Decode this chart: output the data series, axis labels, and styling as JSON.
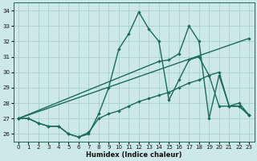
{
  "xlabel": "Humidex (Indice chaleur)",
  "bg_color": "#cde8e8",
  "grid_color": "#a8d0d0",
  "line_color": "#1a6b5a",
  "xlim": [
    -0.5,
    23.5
  ],
  "ylim": [
    25.5,
    34.5
  ],
  "yticks": [
    26,
    27,
    28,
    29,
    30,
    31,
    32,
    33,
    34
  ],
  "xticks": [
    0,
    1,
    2,
    3,
    4,
    5,
    6,
    7,
    8,
    9,
    10,
    11,
    12,
    13,
    14,
    15,
    16,
    17,
    18,
    19,
    20,
    21,
    22,
    23
  ],
  "series1_x": [
    0,
    1,
    2,
    3,
    4,
    5,
    6,
    7,
    8,
    9,
    10,
    11,
    12,
    13,
    14,
    15,
    16,
    17,
    18,
    19,
    20,
    21,
    22,
    23
  ],
  "series1_y": [
    27.0,
    27.0,
    26.7,
    26.5,
    26.5,
    26.0,
    25.8,
    26.0,
    27.3,
    29.0,
    31.5,
    32.5,
    33.9,
    32.8,
    32.0,
    28.2,
    29.5,
    30.8,
    31.0,
    29.8,
    27.8,
    27.8,
    28.0,
    27.2
  ],
  "series2_x": [
    0,
    23
  ],
  "series2_y": [
    27.0,
    32.2
  ],
  "series3_x": [
    0,
    14,
    15,
    16,
    17,
    18,
    19,
    20,
    21,
    22,
    23
  ],
  "series3_y": [
    27.0,
    30.7,
    30.8,
    31.2,
    33.0,
    32.0,
    27.0,
    29.8,
    27.8,
    27.8,
    27.2
  ],
  "series4_x": [
    0,
    1,
    2,
    3,
    4,
    5,
    6,
    7,
    8,
    9,
    10,
    11,
    12,
    13,
    14,
    15,
    16,
    17,
    18,
    19,
    20,
    21,
    22,
    23
  ],
  "series4_y": [
    27.0,
    27.0,
    26.7,
    26.5,
    26.5,
    26.0,
    25.8,
    26.1,
    27.0,
    27.3,
    27.5,
    27.8,
    28.1,
    28.3,
    28.5,
    28.7,
    29.0,
    29.3,
    29.5,
    29.8,
    30.0,
    27.8,
    27.8,
    27.2
  ]
}
